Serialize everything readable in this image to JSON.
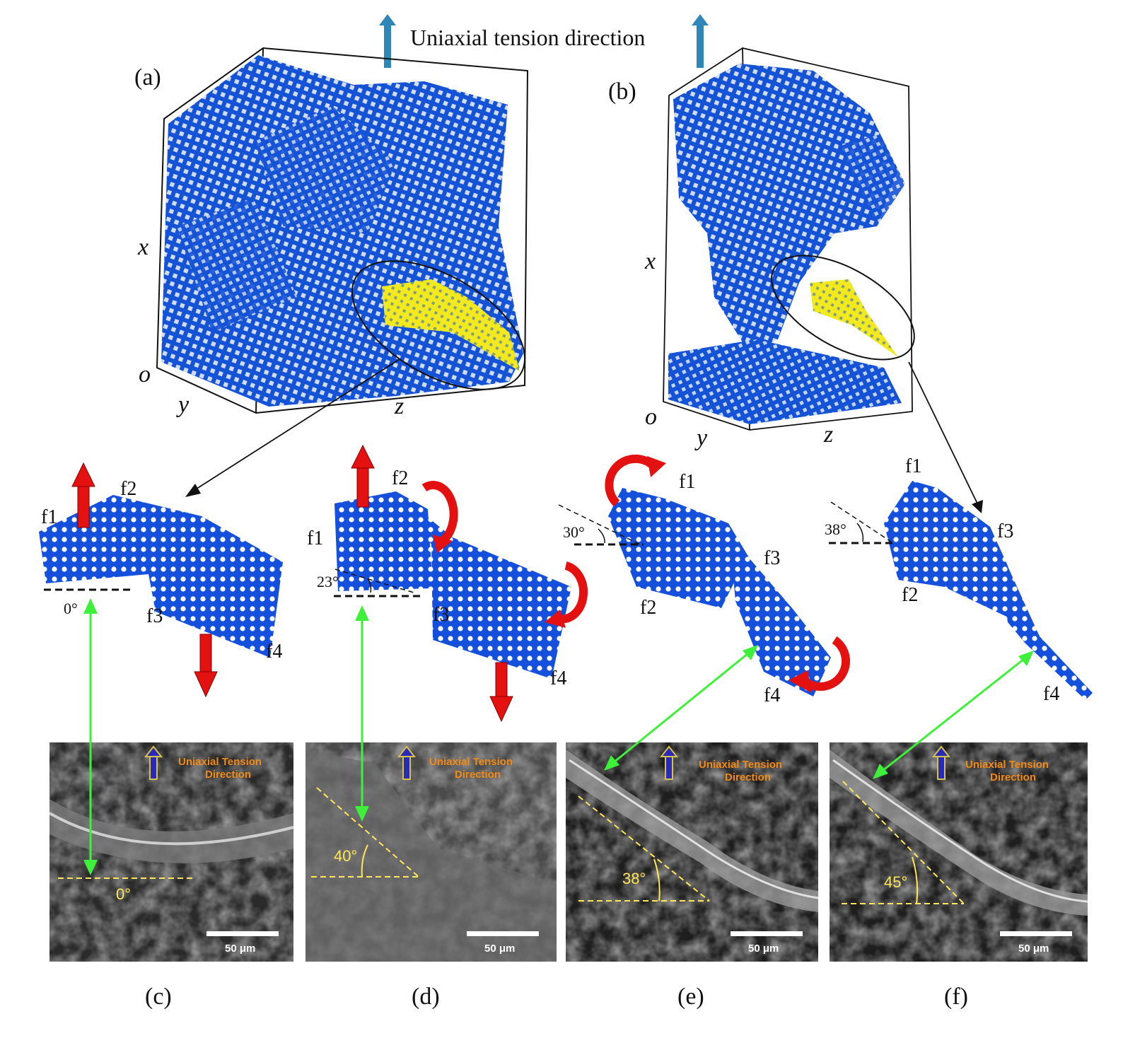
{
  "header": {
    "tension_label": "Uniaxial tension direction"
  },
  "colors": {
    "graphene": "#1452d6",
    "graphene_dark": "#0b3aa8",
    "highlight": "#f2ea1e",
    "force_arrow": "#e3110f",
    "link_arrow": "#3ef03a",
    "tension_arrow": "#2f86b8",
    "sem_label": "#f28a16",
    "angle_line": "#ffe75a"
  },
  "panels": {
    "a": {
      "label": "(a)",
      "axis_x": "x",
      "axis_o": "o",
      "axis_y": "y",
      "axis_z": "z"
    },
    "b": {
      "label": "(b)",
      "axis_x": "x",
      "axis_o": "o",
      "axis_y": "y",
      "axis_z": "z"
    },
    "c": {
      "label": "(c)",
      "f1": "f1",
      "f2": "f2",
      "f3": "f3",
      "f4": "f4",
      "model_angle": "0°",
      "sem": {
        "tension_line1": "Uniaxial Tension",
        "tension_line2": "Direction",
        "angle": "0°",
        "scale": "50 μm"
      }
    },
    "d": {
      "label": "(d)",
      "f1": "f1",
      "f2": "f2",
      "f3": "f3",
      "f4": "f4",
      "model_angle": "23°",
      "sem": {
        "tension_line1": "Uniaxial Tension",
        "tension_line2": "Direction",
        "angle": "40°",
        "scale": "50 μm"
      }
    },
    "e": {
      "label": "(e)",
      "f1": "f1",
      "f2": "f2",
      "f3": "f3",
      "f4": "f4",
      "model_angle": "30°",
      "sem": {
        "tension_line1": "Uniaxial Tension",
        "tension_line2": "Direction",
        "angle": "38°",
        "scale": "50 μm"
      }
    },
    "f": {
      "label": "(f)",
      "f1": "f1",
      "f2": "f2",
      "f3": "f3",
      "f4": "f4",
      "model_angle": "38°",
      "sem": {
        "tension_line1": "Uniaxial Tension",
        "tension_line2": "Direction",
        "angle": "45°",
        "scale": "50 μm"
      }
    }
  }
}
